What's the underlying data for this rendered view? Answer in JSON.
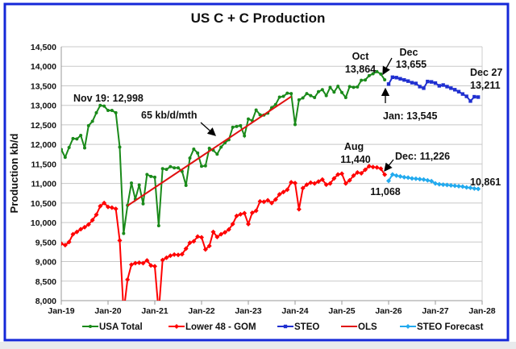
{
  "chart_data": {
    "type": "line",
    "title": "US C + C Production",
    "ylabel": "Production kb/d",
    "xlabel": "",
    "ylim": [
      8000,
      14500
    ],
    "yticks": [
      "8,000",
      "8,500",
      "9,000",
      "9,500",
      "10,000",
      "10,500",
      "11,000",
      "11,500",
      "12,000",
      "12,500",
      "13,000",
      "13,500",
      "14,000",
      "14,500"
    ],
    "xticks": [
      "Jan-19",
      "Jan-20",
      "Jan-21",
      "Jan-22",
      "Jan-23",
      "Jan-24",
      "Jan-25",
      "Jan-26",
      "Jan-27",
      "Jan-28"
    ],
    "grid": "horizontal",
    "legend_placement": "bottom",
    "series": [
      {
        "name": "USA Total",
        "color": "#1a8a1a",
        "marker": "circle",
        "start": "2019-01",
        "values": [
          11870,
          11670,
          11920,
          12150,
          12140,
          12230,
          11910,
          12480,
          12590,
          12810,
          12998,
          12980,
          12870,
          12870,
          12810,
          11930,
          9720,
          10440,
          11010,
          10600,
          10960,
          10480,
          11230,
          11180,
          11160,
          9920,
          11380,
          11360,
          11430,
          11400,
          11400,
          11310,
          10950,
          11650,
          11880,
          11780,
          11440,
          11450,
          11900,
          11850,
          11750,
          11930,
          12040,
          12120,
          12440,
          12460,
          12480,
          12220,
          12650,
          12610,
          12880,
          12760,
          12750,
          12800,
          12940,
          13020,
          13210,
          13230,
          13310,
          13300,
          12510,
          13140,
          13190,
          13300,
          13250,
          13200,
          13350,
          13400,
          13250,
          13460,
          13340,
          13490,
          13330,
          13200,
          13480,
          13460,
          13470,
          13640,
          13650,
          13760,
          13810,
          13864,
          13800,
          13655
        ]
      },
      {
        "name": "Lower 48 - GOM",
        "color": "#ff0000",
        "marker": "diamond",
        "start": "2019-01",
        "values": [
          9460,
          9420,
          9500,
          9700,
          9760,
          9830,
          9880,
          9950,
          10060,
          10200,
          10420,
          10500,
          10400,
          10380,
          10350,
          9540,
          7700,
          8540,
          8920,
          8960,
          8970,
          8960,
          9030,
          8900,
          8880,
          7700,
          9040,
          9100,
          9150,
          9180,
          9170,
          9190,
          9330,
          9480,
          9520,
          9640,
          9620,
          9310,
          9400,
          9760,
          9630,
          9700,
          9750,
          9820,
          9960,
          10170,
          10210,
          10240,
          9960,
          10250,
          10300,
          10540,
          10530,
          10570,
          10500,
          10590,
          10720,
          10780,
          10840,
          11030,
          11010,
          10340,
          10880,
          10970,
          11020,
          11000,
          11050,
          11100,
          10970,
          11000,
          11130,
          11230,
          11250,
          11000,
          11080,
          11200,
          11280,
          11260,
          11350,
          11440,
          11420,
          11410,
          11380,
          11226
        ]
      },
      {
        "name": "STEO",
        "color": "#1f2fd0",
        "marker": "square",
        "start": "2026-01",
        "values": [
          13545,
          13720,
          13710,
          13680,
          13650,
          13620,
          13580,
          13560,
          13480,
          13440,
          13610,
          13600,
          13570,
          13500,
          13520,
          13480,
          13440,
          13400,
          13350,
          13290,
          13230,
          13110,
          13220,
          13211
        ]
      },
      {
        "name": "OLS",
        "color": "#e01010",
        "marker": "none",
        "start": "2020-06",
        "values": [
          10430,
          13225
        ],
        "end": "2023-12"
      },
      {
        "name": "STEO Forecast",
        "color": "#22aaee",
        "marker": "diamond",
        "start": "2026-01",
        "values": [
          11068,
          11230,
          11200,
          11180,
          11160,
          11150,
          11130,
          11120,
          11110,
          11100,
          11080,
          11060,
          11000,
          10980,
          10970,
          10960,
          10950,
          10940,
          10930,
          10920,
          10900,
          10890,
          10870,
          10861
        ]
      }
    ],
    "annotations": {
      "nov19": "Nov 19: 12,998",
      "ols_rate": "65 kb/d/mth",
      "oct_label": "Oct",
      "oct_value": "13,864",
      "dec_label": "Dec",
      "dec_value": "13,655",
      "jan": "Jan: 13,545",
      "dec27_label": "Dec 27",
      "dec27_value": "13,211",
      "aug_label": "Aug",
      "aug_value": "11,440",
      "dec_lower": "Dec: 11,226",
      "jan_lower": "11,068",
      "end_lower": "10,861"
    }
  }
}
